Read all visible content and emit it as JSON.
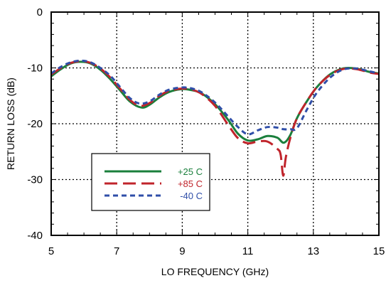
{
  "chart_data": {
    "type": "line",
    "xlabel": "LO FREQUENCY (GHz)",
    "ylabel": "RETURN LOSS (dB)",
    "xlim": [
      5,
      15
    ],
    "ylim": [
      -40,
      0
    ],
    "x_ticks": [
      5,
      7,
      9,
      11,
      13,
      15
    ],
    "x_tick_labels": [
      "5",
      "7",
      "9",
      "11",
      "13",
      "15"
    ],
    "y_ticks": [
      0,
      -10,
      -20,
      -30,
      -40
    ],
    "y_tick_labels": [
      "0",
      "-10",
      "-20",
      "-30",
      "-40"
    ],
    "grid": true,
    "legend_position": "lower-left",
    "series": [
      {
        "name": "+25 C",
        "color": "#1a7f3c",
        "dash": "solid",
        "points": [
          [
            5.0,
            -11.5
          ],
          [
            5.3,
            -10.2
          ],
          [
            5.6,
            -9.2
          ],
          [
            5.9,
            -8.9
          ],
          [
            6.2,
            -9.2
          ],
          [
            6.5,
            -10.3
          ],
          [
            6.8,
            -12.0
          ],
          [
            7.1,
            -14.0
          ],
          [
            7.4,
            -16.0
          ],
          [
            7.75,
            -17.1
          ],
          [
            8.0,
            -16.6
          ],
          [
            8.3,
            -15.3
          ],
          [
            8.6,
            -14.3
          ],
          [
            9.0,
            -13.8
          ],
          [
            9.3,
            -14.0
          ],
          [
            9.6,
            -14.6
          ],
          [
            10.0,
            -16.5
          ],
          [
            10.4,
            -19.3
          ],
          [
            10.7,
            -21.8
          ],
          [
            11.0,
            -23.0
          ],
          [
            11.3,
            -22.8
          ],
          [
            11.6,
            -22.2
          ],
          [
            11.9,
            -22.5
          ],
          [
            12.1,
            -23.4
          ],
          [
            12.3,
            -22.0
          ],
          [
            12.5,
            -19.0
          ],
          [
            12.8,
            -16.0
          ],
          [
            13.1,
            -13.5
          ],
          [
            13.5,
            -11.2
          ],
          [
            13.9,
            -10.1
          ],
          [
            14.3,
            -10.1
          ],
          [
            14.7,
            -10.7
          ],
          [
            15.0,
            -11.0
          ]
        ]
      },
      {
        "name": "+85 C",
        "color": "#c0242b",
        "dash": "long-dash",
        "points": [
          [
            5.0,
            -11.2
          ],
          [
            5.3,
            -10.0
          ],
          [
            5.6,
            -9.1
          ],
          [
            5.9,
            -8.8
          ],
          [
            6.2,
            -9.1
          ],
          [
            6.5,
            -10.1
          ],
          [
            6.8,
            -11.7
          ],
          [
            7.1,
            -13.7
          ],
          [
            7.4,
            -15.7
          ],
          [
            7.7,
            -16.8
          ],
          [
            8.0,
            -16.3
          ],
          [
            8.3,
            -15.0
          ],
          [
            8.6,
            -14.1
          ],
          [
            9.0,
            -13.7
          ],
          [
            9.3,
            -13.9
          ],
          [
            9.6,
            -14.7
          ],
          [
            10.0,
            -16.8
          ],
          [
            10.4,
            -20.2
          ],
          [
            10.7,
            -22.6
          ],
          [
            11.0,
            -23.5
          ],
          [
            11.3,
            -23.2
          ],
          [
            11.6,
            -23.2
          ],
          [
            11.9,
            -24.5
          ],
          [
            12.0,
            -25.5
          ],
          [
            12.08,
            -29.3
          ],
          [
            12.16,
            -26.0
          ],
          [
            12.3,
            -22.5
          ],
          [
            12.5,
            -19.0
          ],
          [
            12.8,
            -16.0
          ],
          [
            13.1,
            -13.5
          ],
          [
            13.5,
            -11.3
          ],
          [
            13.9,
            -10.2
          ],
          [
            14.3,
            -10.2
          ],
          [
            14.7,
            -10.8
          ],
          [
            15.0,
            -11.1
          ]
        ]
      },
      {
        "name": "-40 C",
        "color": "#2f4ea8",
        "dash": "short-dash",
        "points": [
          [
            5.0,
            -11.0
          ],
          [
            5.3,
            -9.8
          ],
          [
            5.6,
            -9.0
          ],
          [
            5.9,
            -8.7
          ],
          [
            6.2,
            -9.0
          ],
          [
            6.5,
            -10.0
          ],
          [
            6.8,
            -11.4
          ],
          [
            7.1,
            -13.4
          ],
          [
            7.4,
            -15.4
          ],
          [
            7.7,
            -16.4
          ],
          [
            8.0,
            -16.0
          ],
          [
            8.3,
            -14.8
          ],
          [
            8.6,
            -13.9
          ],
          [
            9.0,
            -13.5
          ],
          [
            9.3,
            -13.7
          ],
          [
            9.6,
            -14.4
          ],
          [
            10.0,
            -16.2
          ],
          [
            10.4,
            -18.7
          ],
          [
            10.7,
            -20.6
          ],
          [
            11.0,
            -21.9
          ],
          [
            11.3,
            -21.2
          ],
          [
            11.6,
            -20.6
          ],
          [
            11.9,
            -20.7
          ],
          [
            12.1,
            -21.0
          ],
          [
            12.3,
            -21.0
          ],
          [
            12.5,
            -20.8
          ],
          [
            12.8,
            -17.5
          ],
          [
            13.1,
            -14.5
          ],
          [
            13.5,
            -11.8
          ],
          [
            13.9,
            -10.3
          ],
          [
            14.3,
            -10.1
          ],
          [
            14.7,
            -10.6
          ],
          [
            15.0,
            -11.0
          ]
        ]
      }
    ]
  }
}
